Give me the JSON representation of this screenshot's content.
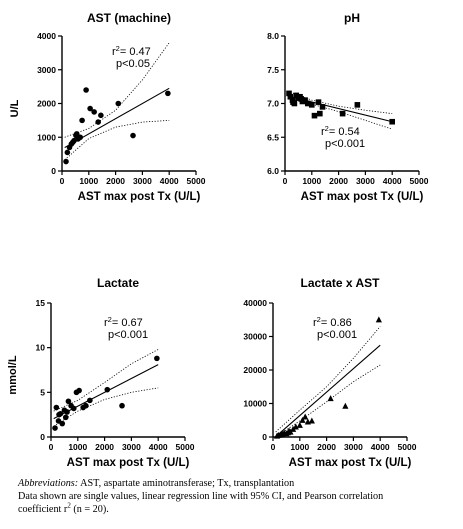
{
  "chart_data": [
    {
      "type": "scatter",
      "title": "AST (machine)",
      "xlabel": "AST max post Tx (U/L)",
      "ylabel": "U/L",
      "xlim": [
        0,
        5000
      ],
      "ylim": [
        0,
        4000
      ],
      "xticks": [
        "0",
        "1000",
        "2000",
        "3000",
        "4000",
        "5000"
      ],
      "yticks": [
        "0",
        "1000",
        "2000",
        "3000",
        "4000"
      ],
      "marker": "circle",
      "stats": {
        "r2_prefix": "r",
        "r2_value": "= 0.47",
        "p": "p<0.05"
      },
      "points": [
        [
          150,
          280
        ],
        [
          200,
          550
        ],
        [
          280,
          700
        ],
        [
          350,
          800
        ],
        [
          450,
          900
        ],
        [
          520,
          1050
        ],
        [
          600,
          950
        ],
        [
          650,
          1000
        ],
        [
          750,
          1500
        ],
        [
          900,
          2400
        ],
        [
          1050,
          1850
        ],
        [
          1200,
          1750
        ],
        [
          1350,
          1450
        ],
        [
          1450,
          1650
        ],
        [
          2100,
          2000
        ],
        [
          2650,
          1050
        ],
        [
          3950,
          2300
        ],
        [
          400,
          850
        ],
        [
          550,
          1100
        ],
        [
          680,
          1000
        ]
      ],
      "fit": {
        "slope": 0.45,
        "intercept": 650
      },
      "ci": [
        [
          100,
          330,
          1000
        ],
        [
          1000,
          960,
          1260
        ],
        [
          2000,
          1300,
          1800
        ],
        [
          3000,
          1450,
          2700
        ],
        [
          4000,
          1500,
          3800
        ]
      ]
    },
    {
      "type": "scatter",
      "title": "pH",
      "xlabel": "AST max post Tx (U/L)",
      "ylabel": "",
      "xlim": [
        0,
        5000
      ],
      "ylim": [
        6.0,
        8.0
      ],
      "xticks": [
        "0",
        "1000",
        "2000",
        "3000",
        "4000",
        "5000"
      ],
      "yticks": [
        "6.0",
        "6.5",
        "7.0",
        "7.5",
        "8.0"
      ],
      "marker": "square",
      "stats": {
        "r2_prefix": "r",
        "r2_value": "= 0.54",
        "p": "p<0.001"
      },
      "points": [
        [
          150,
          7.15
        ],
        [
          200,
          7.1
        ],
        [
          280,
          7.05
        ],
        [
          350,
          7.0
        ],
        [
          420,
          7.12
        ],
        [
          500,
          7.08
        ],
        [
          560,
          7.1
        ],
        [
          650,
          7.03
        ],
        [
          750,
          7.05
        ],
        [
          850,
          7.0
        ],
        [
          1000,
          6.98
        ],
        [
          1100,
          6.82
        ],
        [
          1250,
          7.02
        ],
        [
          1300,
          6.85
        ],
        [
          1400,
          6.95
        ],
        [
          2150,
          6.85
        ],
        [
          2700,
          6.98
        ],
        [
          4000,
          6.73
        ],
        [
          300,
          7.02
        ],
        [
          600,
          7.07
        ]
      ],
      "fit": {
        "slope": -9.75e-05,
        "intercept": 7.12
      },
      "ci": [
        [
          100,
          7.07,
          7.18
        ],
        [
          1000,
          6.99,
          7.05
        ],
        [
          2000,
          6.88,
          6.96
        ],
        [
          3000,
          6.75,
          6.9
        ],
        [
          4000,
          6.62,
          6.85
        ]
      ]
    },
    {
      "type": "scatter",
      "title": "Lactate",
      "xlabel": "AST max post Tx (U/L)",
      "ylabel": "mmol/L",
      "xlim": [
        0,
        5000
      ],
      "ylim": [
        0,
        15
      ],
      "xticks": [
        "0",
        "1000",
        "2000",
        "3000",
        "4000",
        "5000"
      ],
      "yticks": [
        "0",
        "5",
        "10",
        "15"
      ],
      "marker": "circle",
      "stats": {
        "r2_prefix": "r",
        "r2_value": "= 0.67",
        "p": "p<0.001"
      },
      "points": [
        [
          150,
          1.0
        ],
        [
          200,
          3.3
        ],
        [
          280,
          1.8
        ],
        [
          350,
          2.6
        ],
        [
          420,
          1.5
        ],
        [
          500,
          3.0
        ],
        [
          550,
          2.2
        ],
        [
          650,
          4.0
        ],
        [
          750,
          3.5
        ],
        [
          850,
          3.2
        ],
        [
          950,
          5.0
        ],
        [
          1050,
          5.2
        ],
        [
          1200,
          3.3
        ],
        [
          1300,
          3.5
        ],
        [
          1450,
          4.1
        ],
        [
          2100,
          5.3
        ],
        [
          2650,
          3.5
        ],
        [
          3950,
          8.8
        ],
        [
          300,
          2.5
        ],
        [
          600,
          2.8
        ]
      ],
      "fit": {
        "slope": 0.00155,
        "intercept": 1.9
      },
      "ci": [
        [
          100,
          1.2,
          2.9
        ],
        [
          1000,
          2.9,
          4.1
        ],
        [
          2000,
          4.2,
          6.1
        ],
        [
          3000,
          5.0,
          8.2
        ],
        [
          4000,
          5.5,
          9.8
        ]
      ]
    },
    {
      "type": "scatter",
      "title": "Lactate x AST",
      "xlabel": "AST max post Tx (U/L)",
      "ylabel": "",
      "xlim": [
        0,
        5000
      ],
      "ylim": [
        0,
        40000
      ],
      "xticks": [
        "0",
        "1000",
        "2000",
        "3000",
        "4000",
        "5000"
      ],
      "yticks": [
        "0",
        "10000",
        "20000",
        "30000",
        "40000"
      ],
      "marker": "triangle",
      "stats": {
        "r2_prefix": "r",
        "r2_value": "= 0.86",
        "p": "p<0.001"
      },
      "points": [
        [
          150,
          300
        ],
        [
          200,
          500
        ],
        [
          280,
          600
        ],
        [
          350,
          900
        ],
        [
          420,
          1200
        ],
        [
          500,
          1000
        ],
        [
          560,
          1300
        ],
        [
          650,
          1500
        ],
        [
          750,
          2300
        ],
        [
          850,
          3000
        ],
        [
          1000,
          3500
        ],
        [
          1100,
          5000
        ],
        [
          1200,
          6000
        ],
        [
          1300,
          4500
        ],
        [
          1450,
          4800
        ],
        [
          2150,
          11500
        ],
        [
          2700,
          9200
        ],
        [
          3950,
          35000
        ],
        [
          300,
          700
        ],
        [
          600,
          1800
        ]
      ],
      "fit": {
        "slope": 7.0,
        "intercept": -600
      },
      "ci": [
        [
          100,
          -1500,
          1500
        ],
        [
          1000,
          4800,
          8000
        ],
        [
          2000,
          10500,
          15000
        ],
        [
          3000,
          16500,
          23500
        ],
        [
          4000,
          21500,
          33000
        ]
      ]
    }
  ],
  "caption": {
    "abbrev_label": "Abbreviations:",
    "abbrev_text": " AST, aspartate aminotransferase; Tx, transplantation",
    "line2": "Data shown are single values, linear regression line with 95% CI, and Pearson correlation",
    "line3_a": "coefficient r",
    "line3_sup": "2",
    "line3_b": " (n = 20)."
  }
}
